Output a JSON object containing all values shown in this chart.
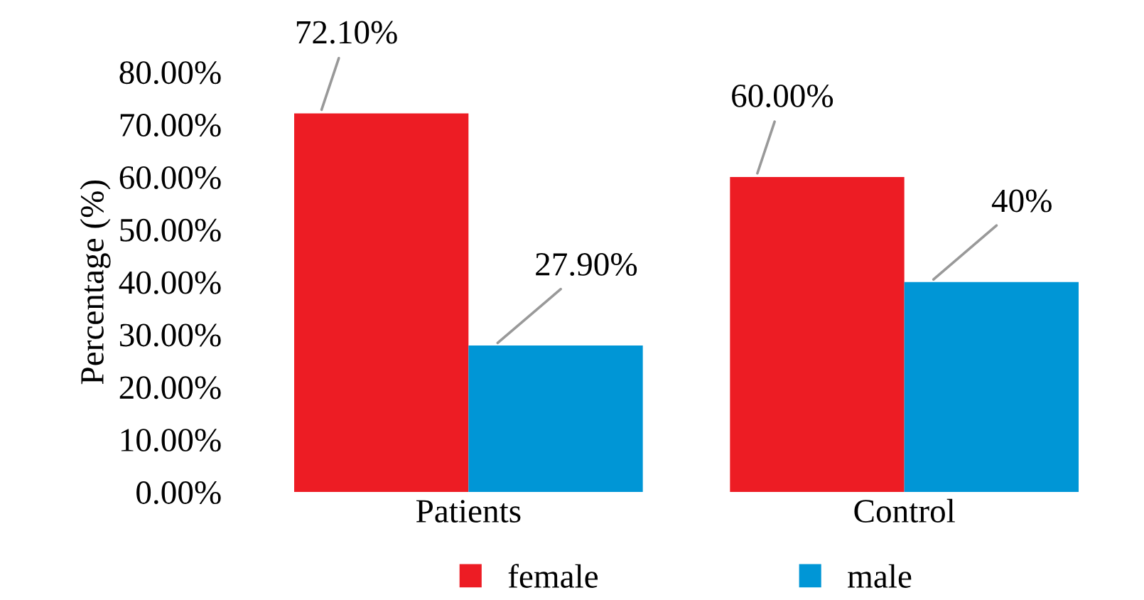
{
  "chart_data": {
    "type": "bar",
    "ylabel": "Percentage (%)",
    "categories": [
      "Patients",
      "Control"
    ],
    "series": [
      {
        "name": "female",
        "color": "#ed1c24",
        "values": [
          72.1,
          60.0
        ],
        "value_labels": [
          "72.10%",
          "60.00%"
        ]
      },
      {
        "name": "male",
        "color": "#0096d6",
        "values": [
          27.9,
          40
        ],
        "value_labels": [
          "27.90%",
          "40%"
        ]
      }
    ],
    "ylim": [
      0,
      80
    ],
    "yticks": [
      {
        "value": 0,
        "label": "0.00%"
      },
      {
        "value": 10,
        "label": "10.00%"
      },
      {
        "value": 20,
        "label": "20.00%"
      },
      {
        "value": 30,
        "label": "30.00%"
      },
      {
        "value": 40,
        "label": "40.00%"
      },
      {
        "value": 50,
        "label": "50.00%"
      },
      {
        "value": 60,
        "label": "60.00%"
      },
      {
        "value": 70,
        "label": "70.00%"
      },
      {
        "value": 80,
        "label": "80.00%"
      }
    ],
    "grid": false,
    "legend": "bottom"
  }
}
